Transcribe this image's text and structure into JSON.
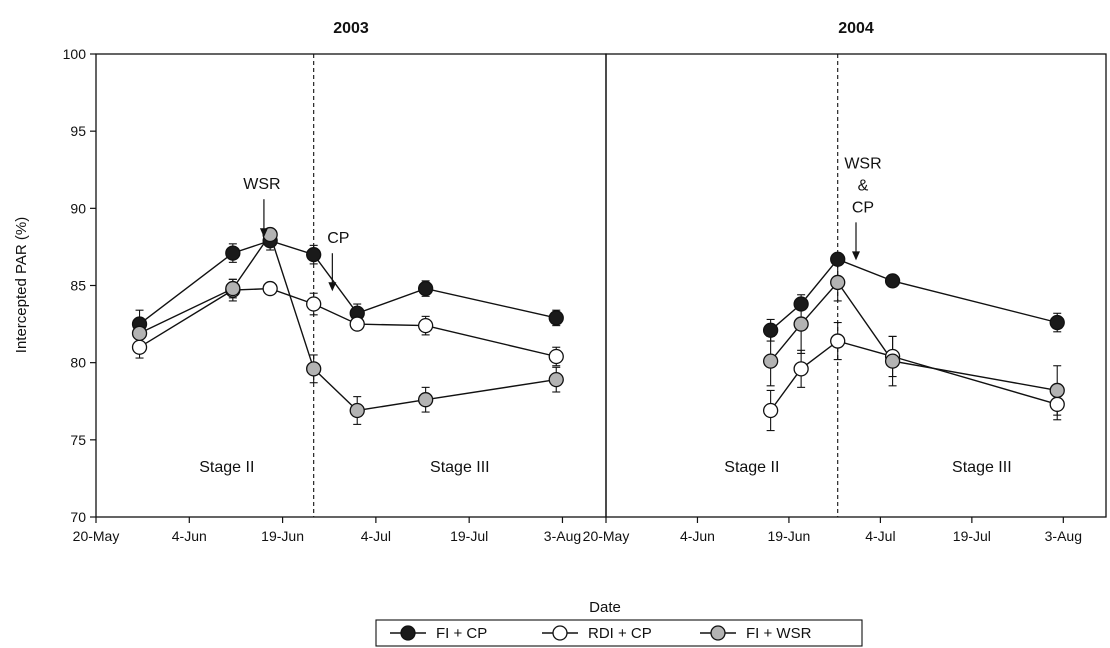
{
  "chart_data": {
    "type": "line",
    "ylabel": "Intercepted PAR (%)",
    "xlabel": "Date",
    "ylim": [
      70,
      100
    ],
    "yticks": [
      70,
      75,
      80,
      85,
      90,
      95,
      100
    ],
    "xlim": [
      "2000-05-20",
      "2000-08-10"
    ],
    "xticks": [
      {
        "date": "2000-05-20",
        "label": "20-May"
      },
      {
        "date": "2000-06-04",
        "label": "4-Jun"
      },
      {
        "date": "2000-06-19",
        "label": "19-Jun"
      },
      {
        "date": "2000-07-04",
        "label": "4-Jul"
      },
      {
        "date": "2000-07-19",
        "label": "19-Jul"
      },
      {
        "date": "2000-08-03",
        "label": "3-Aug"
      }
    ],
    "grid": false,
    "legend_position": "bottom-center",
    "series_styles": [
      {
        "name": "FI + CP",
        "fill": "#1a1a1a"
      },
      {
        "name": "RDI + CP",
        "fill": "#ffffff"
      },
      {
        "name": "FI + WSR",
        "fill": "#b3b3b3"
      }
    ],
    "panels": [
      {
        "title": "2003",
        "divider_date": "2000-06-24",
        "stage_labels": [
          "Stage II",
          "Stage III"
        ],
        "annotations": [
          {
            "lines": [
              "WSR"
            ],
            "date": "2000-06-16",
            "y": 88.0
          },
          {
            "lines": [
              "CP"
            ],
            "date": "2000-06-27",
            "y": 84.5
          }
        ],
        "series": [
          {
            "name": "FI + CP",
            "points": [
              [
                "2000-05-27",
                82.5,
                0.9
              ],
              [
                "2000-06-11",
                87.1,
                0.6
              ],
              [
                "2000-06-17",
                87.9,
                0.6
              ],
              [
                "2000-06-24",
                87.0,
                0.6
              ],
              [
                "2000-07-01",
                83.2,
                0.6
              ],
              [
                "2000-07-12",
                84.8,
                0.5
              ],
              [
                "2000-08-02",
                82.9,
                0.5
              ]
            ]
          },
          {
            "name": "RDI + CP",
            "points": [
              [
                "2000-05-27",
                81.0,
                0.7
              ],
              [
                "2000-06-11",
                84.7,
                0.7
              ],
              [
                "2000-06-17",
                84.8,
                0.0
              ],
              [
                "2000-06-24",
                83.8,
                0.7
              ],
              [
                "2000-07-01",
                82.5,
                0.0
              ],
              [
                "2000-07-12",
                82.4,
                0.6
              ],
              [
                "2000-08-02",
                80.4,
                0.6
              ]
            ]
          },
          {
            "name": "FI + WSR",
            "points": [
              [
                "2000-05-27",
                81.9,
                0.0
              ],
              [
                "2000-06-11",
                84.8,
                0.6
              ],
              [
                "2000-06-17",
                88.3,
                0.0
              ],
              [
                "2000-06-24",
                79.6,
                0.9
              ],
              [
                "2000-07-01",
                76.9,
                0.9
              ],
              [
                "2000-07-12",
                77.6,
                0.8
              ],
              [
                "2000-08-02",
                78.9,
                0.8
              ]
            ]
          }
        ]
      },
      {
        "title": "2004",
        "divider_date": "2000-06-27",
        "stage_labels": [
          "Stage II",
          "Stage III"
        ],
        "annotations": [
          {
            "lines": [
              "WSR",
              "&",
              "CP"
            ],
            "date": "2000-06-30",
            "y": 86.5
          }
        ],
        "series": [
          {
            "name": "FI + CP",
            "points": [
              [
                "2000-06-16",
                82.1,
                0.7
              ],
              [
                "2000-06-21",
                83.8,
                0.0
              ],
              [
                "2000-06-27",
                86.7,
                0.0
              ],
              [
                "2000-07-06",
                85.3,
                0.0
              ],
              [
                "2000-08-02",
                82.6,
                0.6
              ]
            ]
          },
          {
            "name": "RDI + CP",
            "points": [
              [
                "2000-06-16",
                76.9,
                1.3
              ],
              [
                "2000-06-21",
                79.6,
                1.2
              ],
              [
                "2000-06-27",
                81.4,
                1.2
              ],
              [
                "2000-07-06",
                80.4,
                1.3
              ],
              [
                "2000-08-02",
                77.3,
                1.0
              ]
            ]
          },
          {
            "name": "FI + WSR",
            "points": [
              [
                "2000-06-16",
                80.1,
                1.6
              ],
              [
                "2000-06-21",
                82.5,
                1.9
              ],
              [
                "2000-06-27",
                85.2,
                1.2
              ],
              [
                "2000-07-06",
                80.1,
                1.6
              ],
              [
                "2000-08-02",
                78.2,
                1.6
              ]
            ]
          }
        ]
      }
    ]
  }
}
